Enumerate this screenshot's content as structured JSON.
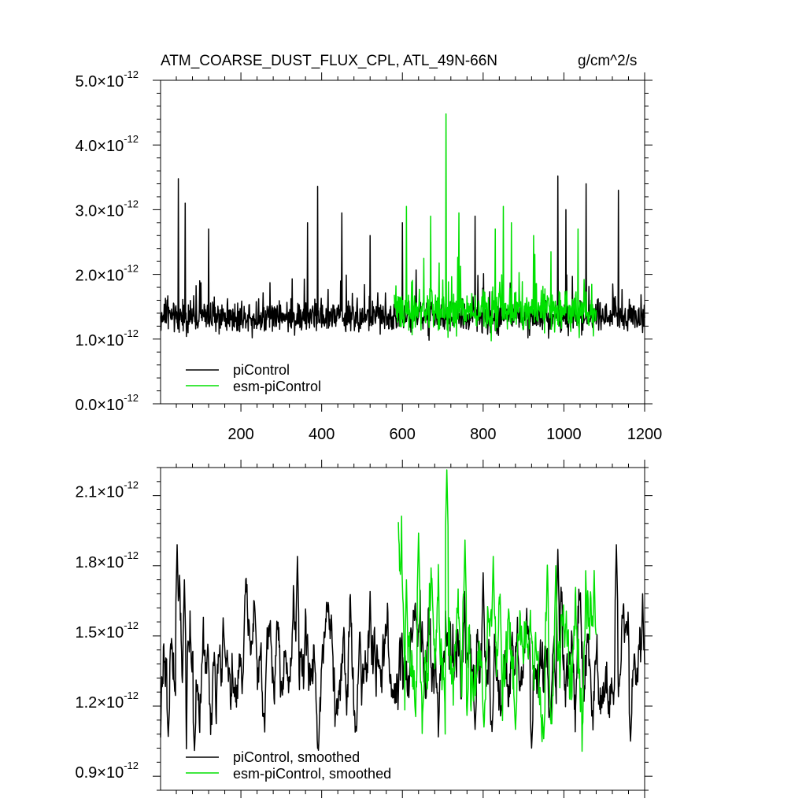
{
  "figure": {
    "title": "ATM_COARSE_DUST_FLUX_CPL, ATL_49N-66N",
    "units": "g/cm^2/s"
  },
  "colors": {
    "piControl": "#000000",
    "esm_piControl": "#00e000"
  },
  "chart_data": [
    {
      "type": "line",
      "title": "ATM_COARSE_DUST_FLUX_CPL, ATL_49N-66N",
      "units": "g/cm^2/s",
      "xlabel": "",
      "ylabel": "",
      "xlim": [
        1,
        1200
      ],
      "xticks": [
        200,
        400,
        600,
        800,
        1000,
        1200
      ],
      "ylim": [
        0.0,
        5e-12
      ],
      "yticks": [
        {
          "mant": "0.0",
          "exp": "-12",
          "value": 0.0
        },
        {
          "mant": "1.0",
          "exp": "-12",
          "value": 1e-12
        },
        {
          "mant": "2.0",
          "exp": "-12",
          "value": 2e-12
        },
        {
          "mant": "3.0",
          "exp": "-12",
          "value": 3e-12
        },
        {
          "mant": "4.0",
          "exp": "-12",
          "value": 4e-12
        },
        {
          "mant": "5.0",
          "exp": "-12",
          "value": 5e-12
        }
      ],
      "grid": false,
      "legend_position": "bottom-left",
      "series": [
        {
          "name": "piControl",
          "color": "#000000",
          "x_range": [
            1,
            1200
          ],
          "mean": 1.35e-12,
          "noise_amp": 3e-13,
          "peaks": [
            [
              45,
              3.48e-12
            ],
            [
              62,
              3.1e-12
            ],
            [
              120,
              2.7e-12
            ],
            [
              365,
              2.8e-12
            ],
            [
              390,
              3.36e-12
            ],
            [
              450,
              2.95e-12
            ],
            [
              520,
              2.6e-12
            ],
            [
              600,
              2.8e-12
            ],
            [
              780,
              2.9e-12
            ],
            [
              985,
              3.52e-12
            ],
            [
              1005,
              3e-12
            ],
            [
              1055,
              3.4e-12
            ],
            [
              1135,
              3.3e-12
            ]
          ]
        },
        {
          "name": "esm-piControl",
          "color": "#00e000",
          "x_range": [
            580,
            1080
          ],
          "mean": 1.45e-12,
          "noise_amp": 4e-13,
          "peaks": [
            [
              610,
              3.05e-12
            ],
            [
              670,
              2.9e-12
            ],
            [
              708,
              4.48e-12
            ],
            [
              740,
              2.95e-12
            ],
            [
              830,
              2.7e-12
            ],
            [
              850,
              3.05e-12
            ],
            [
              870,
              2.8e-12
            ],
            [
              925,
              2.6e-12
            ],
            [
              1035,
              2.7e-12
            ]
          ]
        }
      ]
    },
    {
      "type": "line",
      "title": "",
      "xlabel": "",
      "ylabel": "",
      "xlim": [
        1,
        1200
      ],
      "ylim": [
        8.2e-13,
        2.2e-12
      ],
      "yticks": [
        {
          "mant": "0.9",
          "exp": "-12",
          "value": 9e-13
        },
        {
          "mant": "1.2",
          "exp": "-12",
          "value": 1.2e-12
        },
        {
          "mant": "1.5",
          "exp": "-12",
          "value": 1.5e-12
        },
        {
          "mant": "1.8",
          "exp": "-12",
          "value": 1.8e-12
        },
        {
          "mant": "2.1",
          "exp": "-12",
          "value": 2.1e-12
        }
      ],
      "grid": false,
      "legend_position": "bottom-left",
      "series": [
        {
          "name": "piControl, smoothed",
          "color": "#000000",
          "x_range": [
            1,
            1200
          ],
          "mean": 1.38e-12,
          "noise_amp": 1.3e-13,
          "peaks": [
            [
              42,
              1.87e-12
            ],
            [
              60,
              1.72e-12
            ],
            [
              340,
              1.82e-12
            ],
            [
              520,
              1.67e-12
            ],
            [
              800,
              1.75e-12
            ],
            [
              985,
              1.85e-12
            ],
            [
              1130,
              1.87e-12
            ],
            [
              1195,
              1.66e-12
            ]
          ],
          "dips": [
            [
              20,
              1.05e-12
            ],
            [
              85,
              9.9e-13
            ],
            [
              520,
              9.7e-13
            ],
            [
              780,
              1.08e-12
            ],
            [
              920,
              1e-12
            ],
            [
              1165,
              1.03e-12
            ]
          ]
        },
        {
          "name": "esm-piControl, smoothed",
          "color": "#00e000",
          "x_range": [
            590,
            1080
          ],
          "mean": 1.42e-12,
          "noise_amp": 1.6e-13,
          "peaks": [
            [
              610,
              1.72e-12
            ],
            [
              640,
              1.92e-12
            ],
            [
              710,
              2.19e-12
            ],
            [
              755,
              1.89e-12
            ],
            [
              825,
              1.82e-12
            ],
            [
              980,
              1.78e-12
            ],
            [
              1075,
              1.76e-12
            ]
          ],
          "dips": [
            [
              650,
              1.15e-12
            ],
            [
              760,
              1.14e-12
            ],
            [
              880,
              1.08e-12
            ],
            [
              950,
              1.04e-12
            ]
          ]
        }
      ]
    }
  ]
}
